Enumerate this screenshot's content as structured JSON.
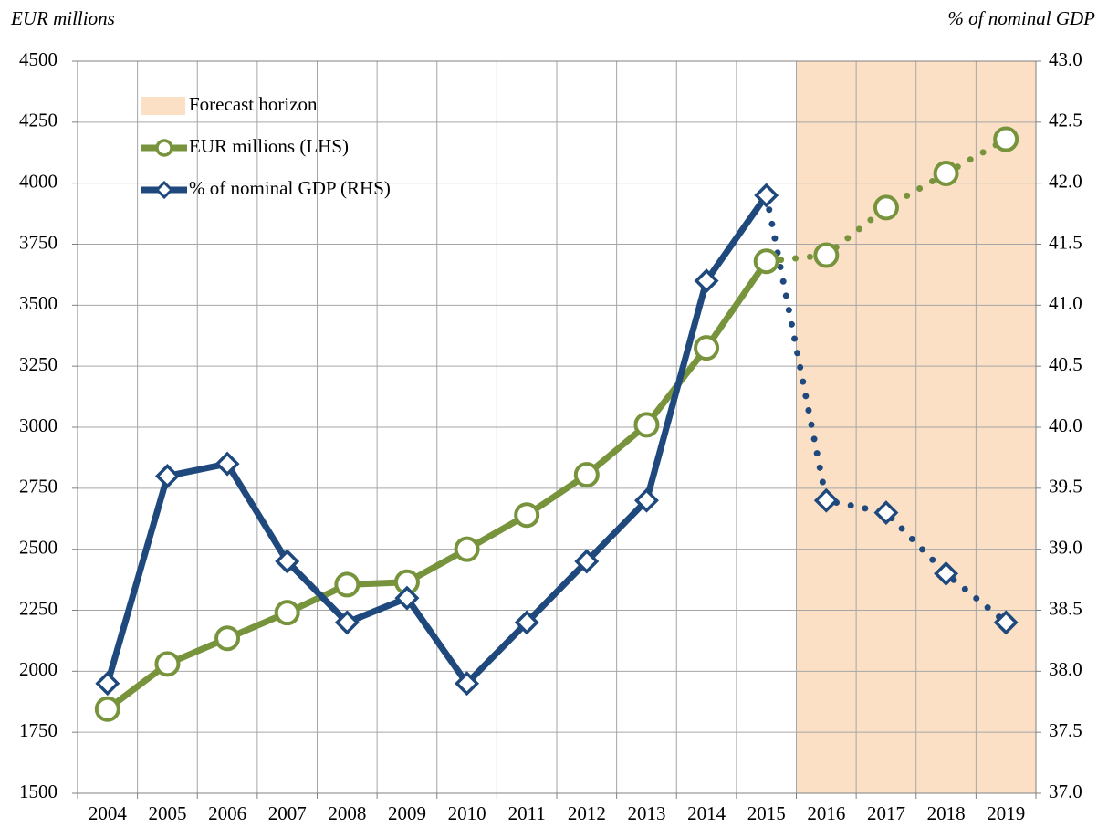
{
  "chart_data": {
    "type": "line",
    "y_label": "EUR millions",
    "y2_label": "% of nominal GDP",
    "categories": [
      "2004",
      "2005",
      "2006",
      "2007",
      "2008",
      "2009",
      "2010",
      "2011",
      "2012",
      "2013",
      "2014",
      "2015",
      "2016",
      "2017",
      "2018",
      "2019"
    ],
    "series": [
      {
        "name": "EUR millions (LHS)",
        "color": "#77933c",
        "values": [
          1845,
          2030,
          2135,
          2240,
          2355,
          2365,
          2500,
          2640,
          2805,
          3010,
          3325,
          3680,
          3705,
          3900,
          4040,
          4180
        ]
      },
      {
        "name": "% of nominal GDP (RHS)",
        "color": "#1f497d",
        "axis": "y2",
        "values": [
          37.9,
          39.6,
          39.7,
          38.9,
          38.4,
          38.6,
          37.9,
          38.4,
          38.9,
          39.4,
          41.2,
          41.9,
          39.4,
          39.3,
          38.8,
          38.4
        ]
      }
    ],
    "shaded_region": {
      "name": "Forecast horizon",
      "from": "2016",
      "to": "2019",
      "color": "#fbe0c6"
    },
    "ylim": [
      1500,
      4500
    ],
    "yticks": [
      1500,
      1750,
      2000,
      2250,
      2500,
      2750,
      3000,
      3250,
      3500,
      3750,
      4000,
      4250,
      4500
    ],
    "y2lim": [
      37,
      43
    ],
    "y2ticks": [
      {
        "value": 37,
        "label": "37.0"
      },
      37.5,
      {
        "value": 38,
        "label": "38.0"
      },
      38.5,
      {
        "value": 39,
        "label": "39.0"
      },
      39.5,
      {
        "value": 40,
        "label": "40.0"
      },
      40.5,
      {
        "value": 41,
        "label": "41.0"
      },
      41.5,
      {
        "value": 42,
        "label": "42.0"
      },
      42.5,
      {
        "value": 43,
        "label": "43.0"
      }
    ],
    "grid": true,
    "legend": "upper left"
  }
}
